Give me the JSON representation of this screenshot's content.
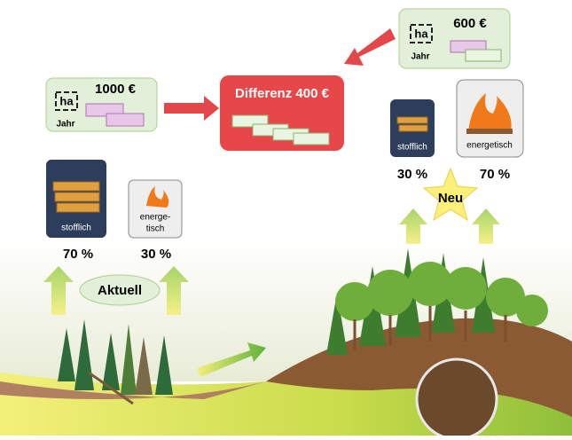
{
  "current": {
    "revenue": {
      "unit": "ha",
      "amount": "1000 €",
      "period": "Jahr"
    },
    "material": {
      "label": "stofflich",
      "share": "70 %"
    },
    "energy": {
      "label_lines": [
        "energe-",
        "tisch"
      ],
      "share": "30 %"
    },
    "label": "Aktuell"
  },
  "difference": "Differenz 400 €",
  "new": {
    "revenue": {
      "unit": "ha",
      "amount": "600 €",
      "period": "Jahr"
    },
    "material": {
      "label": "stofflich",
      "share": "30 %"
    },
    "energy": {
      "label": "energetisch",
      "share": "70 %"
    },
    "label": "Neu"
  }
}
